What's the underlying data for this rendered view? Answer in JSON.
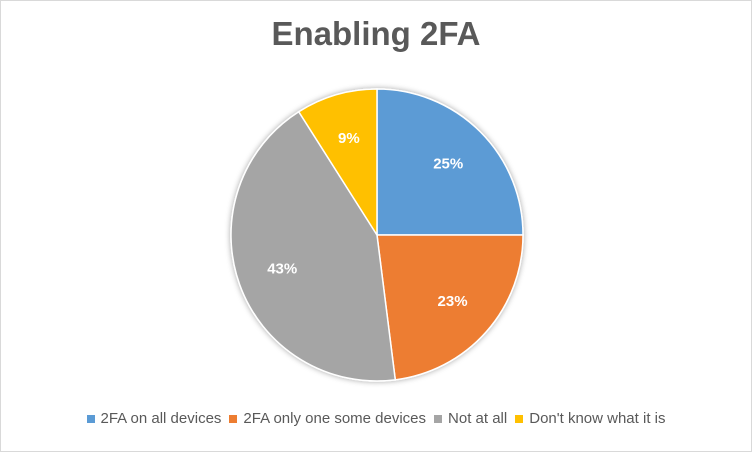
{
  "chart_data": {
    "type": "pie",
    "title": "Enabling 2FA",
    "categories": [
      "2FA on all devices",
      "2FA only one some devices",
      "Not at all",
      "Don't know what it is"
    ],
    "values": [
      25,
      23,
      43,
      9
    ],
    "value_labels": [
      "25%",
      "23%",
      "43%",
      "9%"
    ],
    "colors": [
      "#5B9BD5",
      "#ED7D31",
      "#A5A5A5",
      "#FFC000"
    ],
    "legend": {
      "position": "bottom"
    }
  }
}
